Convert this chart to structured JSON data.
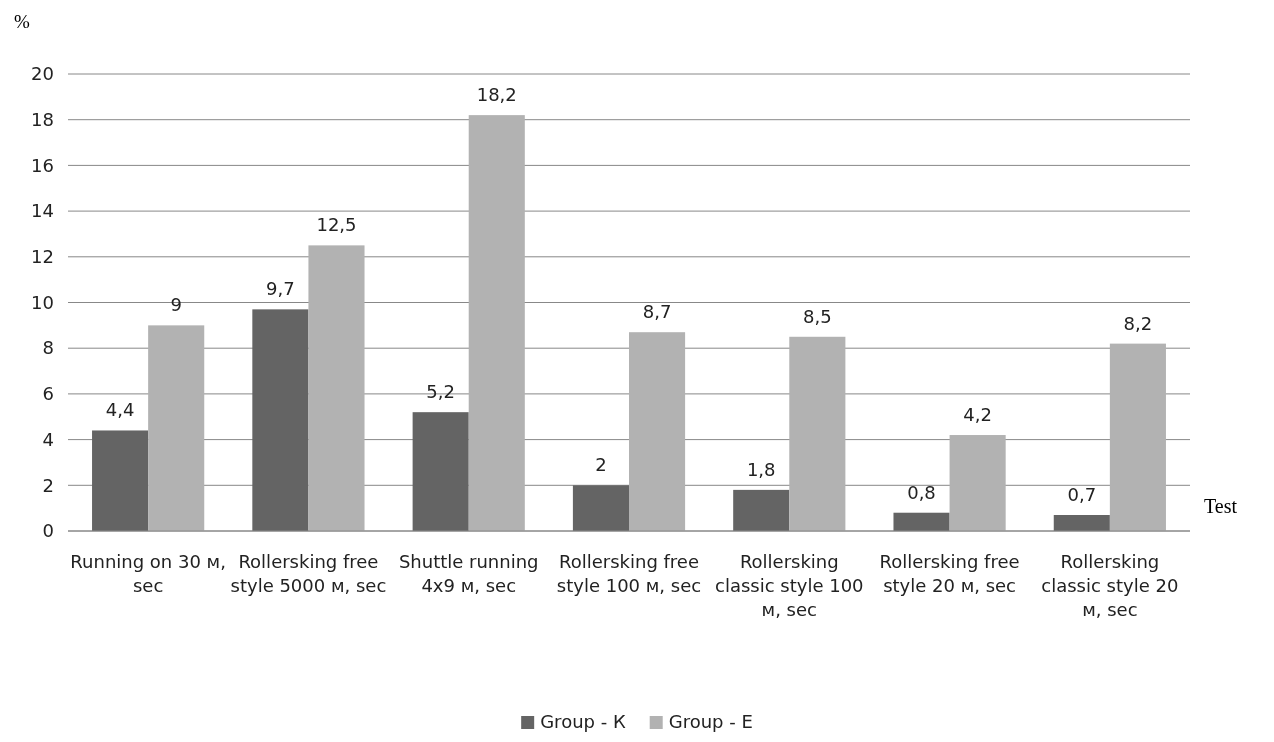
{
  "chart_data": {
    "type": "bar",
    "xlabel": "Test",
    "ylabel": "%",
    "categories": [
      "Running on 30 м, sec",
      "Rollersking free style 5000 м, sec",
      "Shuttle running 4x9 м, sec",
      "Rollersking free style 100 м, sec",
      "Rollersking classic style 100 м, sec",
      "Rollersking free style 20 м, sec",
      "Rollersking classic style 20 м, sec"
    ],
    "series": [
      {
        "name": "Group - К",
        "color": "#646464",
        "values": [
          4.4,
          9.7,
          5.2,
          2,
          1.8,
          0.8,
          0.7
        ],
        "value_labels": [
          "4,4",
          "9,7",
          "5,2",
          "2",
          "1,8",
          "0,8",
          "0,7"
        ]
      },
      {
        "name": "Group - Е",
        "color": "#b2b2b2",
        "values": [
          9,
          12.5,
          18.2,
          8.7,
          8.5,
          4.2,
          8.2
        ],
        "value_labels": [
          "9",
          "12,5",
          "18,2",
          "8,7",
          "8,5",
          "4,2",
          "8,2"
        ]
      }
    ],
    "ylim": [
      0,
      20
    ],
    "yticks": [
      0,
      2,
      4,
      6,
      8,
      10,
      12,
      14,
      16,
      18,
      20
    ],
    "grid": "y",
    "legend": "bottom"
  }
}
